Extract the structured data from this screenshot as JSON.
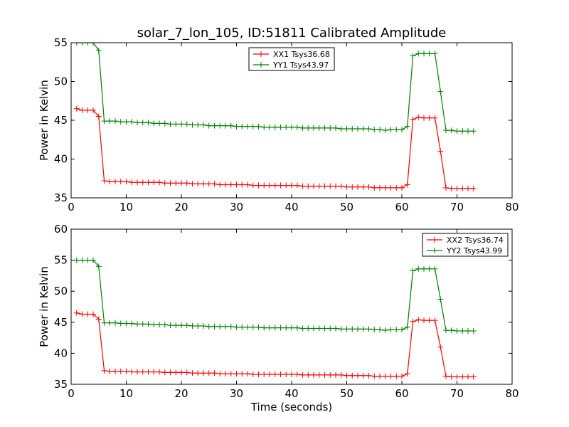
{
  "chart_data": [
    {
      "type": "line",
      "title": "solar_7_lon_105, ID:51811 Calibrated Amplitude",
      "xlabel": "",
      "ylabel": "Power in Kelvin",
      "xlim": [
        0,
        80
      ],
      "ylim": [
        35,
        55
      ],
      "xticks": [
        0,
        10,
        20,
        30,
        40,
        50,
        60,
        70,
        80
      ],
      "yticks": [
        35,
        40,
        45,
        50,
        55
      ],
      "grid": false,
      "legend_position": "top-center",
      "x": [
        1,
        2,
        3,
        4,
        5,
        6,
        7,
        8,
        9,
        10,
        11,
        12,
        13,
        14,
        15,
        16,
        17,
        18,
        19,
        20,
        21,
        22,
        23,
        24,
        25,
        26,
        27,
        28,
        29,
        30,
        31,
        32,
        33,
        34,
        35,
        36,
        37,
        38,
        39,
        40,
        41,
        42,
        43,
        44,
        45,
        46,
        47,
        48,
        49,
        50,
        51,
        52,
        53,
        54,
        55,
        56,
        57,
        58,
        59,
        60,
        61,
        62,
        63,
        64,
        65,
        66,
        67,
        68,
        69,
        70,
        71,
        72,
        73
      ],
      "series": [
        {
          "name": "XX1 Tsys36.68",
          "color": "#ff0000",
          "values": [
            46.5,
            46.3,
            46.3,
            46.3,
            45.5,
            37.2,
            37.1,
            37.1,
            37.1,
            37.1,
            37.0,
            37.0,
            37.0,
            37.0,
            37.0,
            37.0,
            36.9,
            36.9,
            36.9,
            36.9,
            36.9,
            36.8,
            36.8,
            36.8,
            36.8,
            36.8,
            36.7,
            36.7,
            36.7,
            36.7,
            36.7,
            36.7,
            36.6,
            36.6,
            36.6,
            36.6,
            36.6,
            36.6,
            36.6,
            36.6,
            36.6,
            36.5,
            36.5,
            36.5,
            36.5,
            36.5,
            36.5,
            36.5,
            36.5,
            36.4,
            36.4,
            36.4,
            36.4,
            36.4,
            36.3,
            36.3,
            36.3,
            36.3,
            36.3,
            36.3,
            36.7,
            45.1,
            45.4,
            45.3,
            45.3,
            45.3,
            41.0,
            36.3,
            36.2,
            36.2,
            36.2,
            36.2,
            36.2
          ]
        },
        {
          "name": "YY1 Tsys43.97",
          "color": "#008000",
          "values": [
            55.0,
            55.0,
            55.0,
            55.0,
            54.0,
            44.9,
            44.9,
            44.9,
            44.8,
            44.8,
            44.8,
            44.7,
            44.7,
            44.7,
            44.6,
            44.6,
            44.6,
            44.5,
            44.5,
            44.5,
            44.5,
            44.4,
            44.4,
            44.4,
            44.3,
            44.3,
            44.3,
            44.3,
            44.3,
            44.2,
            44.2,
            44.2,
            44.2,
            44.2,
            44.1,
            44.1,
            44.1,
            44.1,
            44.1,
            44.1,
            44.1,
            44.0,
            44.0,
            44.0,
            44.0,
            44.0,
            44.0,
            44.0,
            43.9,
            43.9,
            43.9,
            43.9,
            43.9,
            43.9,
            43.8,
            43.8,
            43.7,
            43.8,
            43.8,
            43.8,
            44.2,
            53.3,
            53.6,
            53.6,
            53.6,
            53.6,
            48.7,
            43.7,
            43.7,
            43.6,
            43.6,
            43.6,
            43.6
          ]
        }
      ]
    },
    {
      "type": "line",
      "title": "",
      "xlabel": "Time (seconds)",
      "ylabel": "Power in Kelvin",
      "xlim": [
        0,
        80
      ],
      "ylim": [
        35,
        60
      ],
      "xticks": [
        0,
        10,
        20,
        30,
        40,
        50,
        60,
        70,
        80
      ],
      "yticks": [
        35,
        40,
        45,
        50,
        55,
        60
      ],
      "grid": false,
      "legend_position": "top-right",
      "x": [
        1,
        2,
        3,
        4,
        5,
        6,
        7,
        8,
        9,
        10,
        11,
        12,
        13,
        14,
        15,
        16,
        17,
        18,
        19,
        20,
        21,
        22,
        23,
        24,
        25,
        26,
        27,
        28,
        29,
        30,
        31,
        32,
        33,
        34,
        35,
        36,
        37,
        38,
        39,
        40,
        41,
        42,
        43,
        44,
        45,
        46,
        47,
        48,
        49,
        50,
        51,
        52,
        53,
        54,
        55,
        56,
        57,
        58,
        59,
        60,
        61,
        62,
        63,
        64,
        65,
        66,
        67,
        68,
        69,
        70,
        71,
        72,
        73
      ],
      "series": [
        {
          "name": "XX2 Tsys36.74",
          "color": "#ff0000",
          "values": [
            46.5,
            46.3,
            46.3,
            46.3,
            45.5,
            37.2,
            37.1,
            37.1,
            37.1,
            37.1,
            37.0,
            37.0,
            37.0,
            37.0,
            37.0,
            37.0,
            36.9,
            36.9,
            36.9,
            36.9,
            36.9,
            36.8,
            36.8,
            36.8,
            36.8,
            36.8,
            36.7,
            36.7,
            36.7,
            36.7,
            36.7,
            36.7,
            36.6,
            36.6,
            36.6,
            36.6,
            36.6,
            36.6,
            36.6,
            36.6,
            36.6,
            36.5,
            36.5,
            36.5,
            36.5,
            36.5,
            36.5,
            36.5,
            36.5,
            36.4,
            36.4,
            36.4,
            36.4,
            36.4,
            36.3,
            36.3,
            36.3,
            36.3,
            36.3,
            36.3,
            36.7,
            45.1,
            45.4,
            45.3,
            45.3,
            45.3,
            41.0,
            36.3,
            36.2,
            36.2,
            36.2,
            36.2,
            36.2
          ]
        },
        {
          "name": "YY2 Tsys43.99",
          "color": "#008000",
          "values": [
            55.0,
            55.0,
            55.0,
            55.0,
            54.0,
            44.9,
            44.9,
            44.9,
            44.8,
            44.8,
            44.8,
            44.7,
            44.7,
            44.7,
            44.6,
            44.6,
            44.6,
            44.5,
            44.5,
            44.5,
            44.5,
            44.4,
            44.4,
            44.4,
            44.3,
            44.3,
            44.3,
            44.3,
            44.3,
            44.2,
            44.2,
            44.2,
            44.2,
            44.2,
            44.1,
            44.1,
            44.1,
            44.1,
            44.1,
            44.1,
            44.1,
            44.0,
            44.0,
            44.0,
            44.0,
            44.0,
            44.0,
            44.0,
            43.9,
            43.9,
            43.9,
            43.9,
            43.9,
            43.9,
            43.8,
            43.8,
            43.7,
            43.8,
            43.8,
            43.8,
            44.2,
            53.3,
            53.6,
            53.6,
            53.6,
            53.6,
            48.7,
            43.7,
            43.7,
            43.6,
            43.6,
            43.6,
            43.6
          ]
        }
      ]
    }
  ]
}
